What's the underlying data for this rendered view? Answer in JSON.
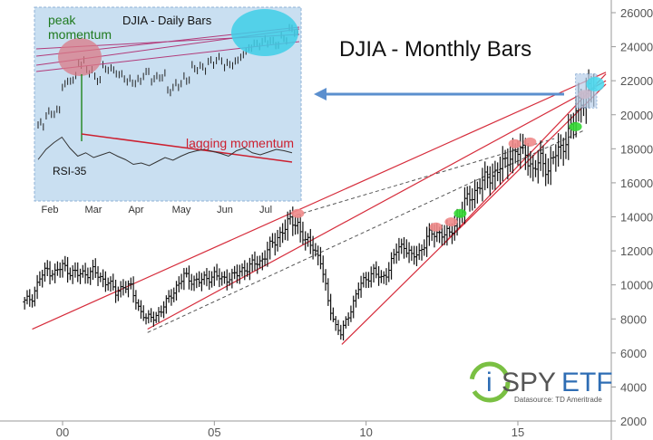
{
  "chart_data": [
    {
      "type": "ohlc",
      "title": "DJIA - Monthly Bars",
      "xlabel": "",
      "ylabel": "",
      "x_tick_labels": [
        "00",
        "05",
        "10",
        "15"
      ],
      "x_tick_years": [
        2000,
        2005,
        2010,
        2015
      ],
      "xlim": [
        1998.7,
        2017.9
      ],
      "ylim": [
        2000,
        26000
      ],
      "y_tick_values": [
        2000,
        4000,
        6000,
        8000,
        10000,
        12000,
        14000,
        16000,
        18000,
        20000,
        22000,
        24000,
        26000
      ],
      "y_tick_labels": [
        "2000",
        "4000",
        "6000",
        "8000",
        "10000",
        "12000",
        "14000",
        "16000",
        "18000",
        "20000",
        "22000",
        "24000",
        "26000"
      ],
      "series": [
        {
          "values": [
            [
              1998.75,
              9000
            ],
            [
              1999.0,
              9300
            ],
            [
              1999.25,
              10400
            ],
            [
              1999.5,
              10900
            ],
            [
              1999.75,
              10700
            ],
            [
              2000.0,
              11100
            ],
            [
              2000.25,
              10800
            ],
            [
              2000.5,
              10600
            ],
            [
              2000.75,
              10700
            ],
            [
              2001.0,
              10800
            ],
            [
              2001.25,
              10400
            ],
            [
              2001.5,
              10200
            ],
            [
              2001.75,
              9500
            ],
            [
              2002.0,
              10000
            ],
            [
              2002.25,
              9800
            ],
            [
              2002.5,
              8700
            ],
            [
              2002.75,
              8000
            ],
            [
              2003.0,
              8100
            ],
            [
              2003.25,
              8500
            ],
            [
              2003.5,
              9200
            ],
            [
              2003.75,
              9900
            ],
            [
              2004.0,
              10500
            ],
            [
              2004.25,
              10300
            ],
            [
              2004.5,
              10200
            ],
            [
              2004.75,
              10400
            ],
            [
              2005.0,
              10600
            ],
            [
              2005.25,
              10300
            ],
            [
              2005.5,
              10500
            ],
            [
              2005.75,
              10600
            ],
            [
              2006.0,
              11000
            ],
            [
              2006.25,
              11200
            ],
            [
              2006.5,
              11300
            ],
            [
              2006.75,
              12100
            ],
            [
              2007.0,
              12500
            ],
            [
              2007.25,
              13300
            ],
            [
              2007.5,
              13700
            ],
            [
              2007.75,
              13600
            ],
            [
              2008.0,
              12500
            ],
            [
              2008.25,
              12300
            ],
            [
              2008.5,
              11400
            ],
            [
              2008.75,
              9000
            ],
            [
              2009.0,
              7600
            ],
            [
              2009.17,
              7100
            ],
            [
              2009.5,
              8600
            ],
            [
              2009.75,
              9800
            ],
            [
              2010.0,
              10400
            ],
            [
              2010.25,
              10800
            ],
            [
              2010.5,
              10300
            ],
            [
              2010.75,
              11000
            ],
            [
              2011.0,
              12000
            ],
            [
              2011.25,
              12400
            ],
            [
              2011.5,
              11600
            ],
            [
              2011.75,
              11900
            ],
            [
              2012.0,
              12800
            ],
            [
              2012.25,
              13000
            ],
            [
              2012.5,
              13100
            ],
            [
              2012.75,
              12900
            ],
            [
              2013.0,
              13900
            ],
            [
              2013.25,
              14800
            ],
            [
              2013.5,
              15300
            ],
            [
              2013.75,
              15900
            ],
            [
              2014.0,
              16300
            ],
            [
              2014.25,
              16600
            ],
            [
              2014.5,
              17000
            ],
            [
              2014.75,
              17700
            ],
            [
              2015.0,
              17800
            ],
            [
              2015.25,
              17900
            ],
            [
              2015.5,
              16600
            ],
            [
              2015.75,
              17400
            ],
            [
              2016.0,
              16800
            ],
            [
              2016.25,
              17700
            ],
            [
              2016.5,
              18300
            ],
            [
              2016.75,
              19100
            ],
            [
              2017.0,
              20800
            ],
            [
              2017.25,
              21000
            ],
            [
              2017.5,
              21800
            ]
          ]
        }
      ],
      "trendlines": [
        {
          "x1": 1999.0,
          "y1": 7400,
          "x2": 2017.9,
          "y2": 22500
        },
        {
          "x1": 2002.8,
          "y1": 7400,
          "x2": 2017.9,
          "y2": 22000
        },
        {
          "x1": 2009.2,
          "y1": 6500,
          "x2": 2017.9,
          "y2": 21800
        },
        {
          "x1": 2012.6,
          "y1": 12500,
          "x2": 2017.9,
          "y2": 22400
        }
      ],
      "dashed_lines": [
        {
          "x1": 2002.8,
          "y1": 7200,
          "x2": 2017.2,
          "y2": 19100
        },
        {
          "x1": 2007.7,
          "y1": 14100,
          "x2": 2016.2,
          "y2": 18600
        }
      ],
      "momentum_markers": [
        {
          "x": 2007.75,
          "y": 14200,
          "color": "#f08a8a"
        },
        {
          "x": 2012.3,
          "y": 13400,
          "color": "#f08a8a"
        },
        {
          "x": 2012.8,
          "y": 13700,
          "color": "#f08a8a"
        },
        {
          "x": 2013.1,
          "y": 14200,
          "color": "#34d934"
        },
        {
          "x": 2014.9,
          "y": 18300,
          "color": "#f08a8a"
        },
        {
          "x": 2015.4,
          "y": 18400,
          "color": "#f08a8a"
        },
        {
          "x": 2016.9,
          "y": 19300,
          "color": "#34d934"
        },
        {
          "x": 2017.2,
          "y": 21200,
          "color": "#f08a8a"
        }
      ],
      "highlight_box": {
        "x1": 2016.9,
        "x2": 2017.6,
        "y1": 20400,
        "y2": 22400,
        "color": "#b9d0ea"
      },
      "highlight_ellipse": {
        "x": 2017.55,
        "y": 21800,
        "color": "#46d9ef"
      },
      "colors": {
        "trendline": "#d62d3c",
        "dashed": "#555555",
        "bars": "#111111",
        "arrow": "#5b8fce"
      }
    },
    {
      "type": "ohlc",
      "title": "DJIA - Daily Bars",
      "x_tick_labels": [
        "Feb",
        "Mar",
        "Apr",
        "May",
        "Jun",
        "Jul"
      ],
      "price_series": [
        19850,
        20050,
        20100,
        20600,
        20700,
        21000,
        20850,
        20700,
        20900,
        20850,
        20750,
        20650,
        20650,
        20800,
        20700,
        20750,
        20500,
        20600,
        20700,
        20900,
        20900,
        21000,
        21050,
        20950,
        21000,
        21150,
        21300,
        21350,
        21400,
        21350,
        21450,
        21600,
        21550
      ],
      "rsi_35": [
        45,
        60,
        70,
        78,
        62,
        50,
        55,
        48,
        52,
        56,
        50,
        45,
        38,
        40,
        36,
        42,
        48,
        44,
        50,
        55,
        58,
        60,
        57,
        54,
        50,
        58,
        62,
        55,
        52,
        56,
        60,
        58,
        55
      ],
      "annotations": {
        "peak": "peak momentum",
        "lagging": "lagging momentum",
        "rsi": "RSI-35"
      },
      "colors": {
        "background": "#c9dff1",
        "price": "#222222",
        "trendlines": "#b23b7a",
        "ellipse_peak": "#d97a85",
        "ellipse_recent": "#3ecfe8",
        "lagging_line": "#cc2030",
        "peak_text": "#1f7a1f"
      }
    }
  ],
  "brand": {
    "name_i": "i",
    "name_spy": "SPY",
    "name_etf": "ETF",
    "source": "Datasource: TD Ameritrade"
  }
}
